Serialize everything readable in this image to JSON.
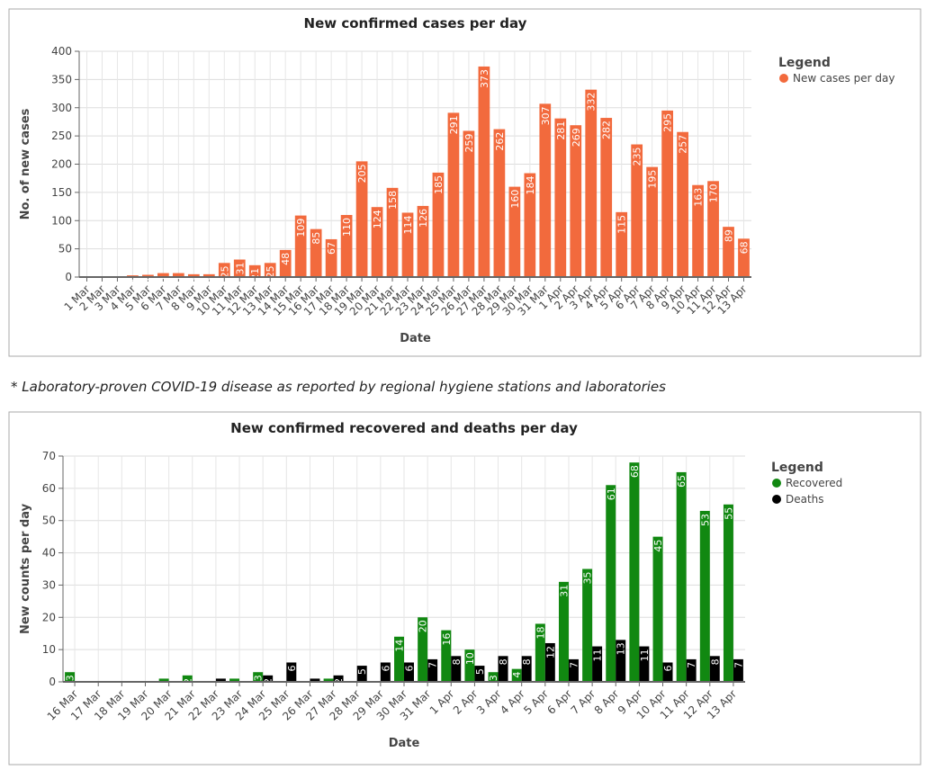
{
  "chart_data": [
    {
      "type": "bar",
      "title": "New confirmed cases per day",
      "x_label": "Date",
      "y_label": "No. of new cases",
      "legend_title": "Legend",
      "categories": [
        "1 Mar",
        "2 Mar",
        "3 Mar",
        "4 Mar",
        "5 Mar",
        "6 Mar",
        "7 Mar",
        "8 Mar",
        "9 Mar",
        "10 Mar",
        "11 Mar",
        "12 Mar",
        "13 Mar",
        "14 Mar",
        "15 Mar",
        "16 Mar",
        "17 Mar",
        "18 Mar",
        "19 Mar",
        "20 Mar",
        "21 Mar",
        "22 Mar",
        "23 Mar",
        "24 Mar",
        "25 Mar",
        "26 Mar",
        "27 Mar",
        "28 Mar",
        "29 Mar",
        "30 Mar",
        "31 Mar",
        "1 Apr",
        "2 Apr",
        "3 Apr",
        "4 Apr",
        "5 Apr",
        "6 Apr",
        "7 Apr",
        "8 Apr",
        "9 Apr",
        "10 Apr",
        "11 Apr",
        "12 Apr",
        "13 Apr"
      ],
      "series": [
        {
          "name": "New cases per day",
          "color": "#f26a3d",
          "values": [
            0,
            1,
            1,
            3,
            4,
            7,
            7,
            5,
            5,
            25,
            31,
            21,
            25,
            48,
            109,
            85,
            67,
            110,
            205,
            124,
            158,
            114,
            126,
            185,
            291,
            259,
            373,
            262,
            160,
            184,
            307,
            281,
            269,
            332,
            282,
            115,
            235,
            195,
            295,
            257,
            163,
            170,
            89,
            68
          ]
        }
      ],
      "ylim": [
        0,
        400
      ],
      "yticks": [
        0,
        50,
        100,
        150,
        200,
        250,
        300,
        350,
        400
      ],
      "grid": true
    },
    {
      "type": "grouped_bar",
      "title": "New confirmed recovered and deaths per day",
      "x_label": "Date",
      "y_label": "New counts per day",
      "legend_title": "Legend",
      "categories": [
        "16 Mar",
        "17 Mar",
        "18 Mar",
        "19 Mar",
        "20 Mar",
        "21 Mar",
        "22 Mar",
        "23 Mar",
        "24 Mar",
        "25 Mar",
        "26 Mar",
        "27 Mar",
        "28 Mar",
        "29 Mar",
        "30 Mar",
        "31 Mar",
        "1 Apr",
        "2 Apr",
        "3 Apr",
        "4 Apr",
        "5 Apr",
        "6 Apr",
        "7 Apr",
        "8 Apr",
        "9 Apr",
        "10 Apr",
        "11 Apr",
        "12 Apr",
        "13 Apr"
      ],
      "series": [
        {
          "name": "Recovered",
          "color": "#118811",
          "values": [
            3,
            0,
            0,
            0,
            1,
            2,
            0,
            1,
            3,
            0,
            0,
            1,
            0,
            0,
            14,
            20,
            16,
            10,
            3,
            4,
            18,
            31,
            35,
            61,
            68,
            45,
            65,
            53,
            55
          ]
        },
        {
          "name": "Deaths",
          "color": "#000000",
          "values": [
            0,
            0,
            0,
            0,
            0,
            0,
            1,
            0,
            2,
            6,
            1,
            2,
            5,
            6,
            6,
            7,
            8,
            5,
            8,
            8,
            12,
            7,
            11,
            13,
            11,
            6,
            7,
            8,
            7
          ]
        }
      ],
      "ylim": [
        0,
        70
      ],
      "yticks": [
        0,
        10,
        20,
        30,
        40,
        50,
        60,
        70
      ],
      "grid": true
    }
  ],
  "note": "* Laboratory-proven COVID-19 disease as reported by regional hygiene stations and laboratories"
}
